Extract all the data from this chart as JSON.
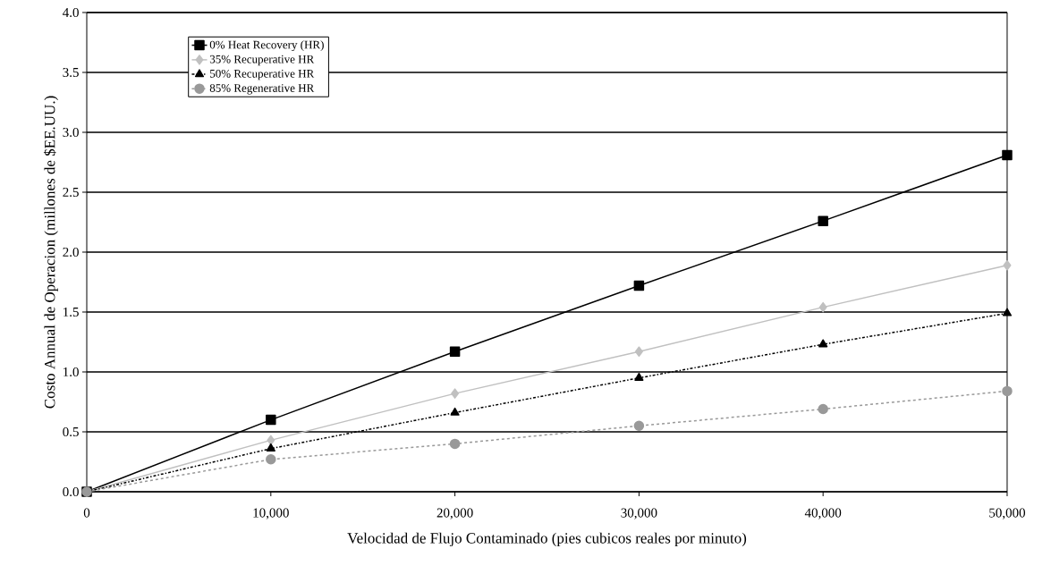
{
  "chart_data": {
    "type": "line",
    "xlabel": "Velocidad de Flujo Contaminado (pies cubicos reales por minuto)",
    "ylabel": "Costo Annual de Operacion (millones de $EE.UU.)",
    "x": [
      0,
      10000,
      20000,
      30000,
      40000,
      50000
    ],
    "series": [
      {
        "name": "0% Heat Recovery (HR)",
        "color": "#000000",
        "marker": "square",
        "line_style": "solid",
        "values": [
          0,
          0.6,
          1.17,
          1.72,
          2.26,
          2.81
        ]
      },
      {
        "name": "35% Recuperative HR",
        "color": "#c0c0c0",
        "marker": "diamond",
        "line_style": "solid",
        "values": [
          0,
          0.43,
          0.82,
          1.17,
          1.54,
          1.89
        ]
      },
      {
        "name": "50% Recuperative HR",
        "color": "#000000",
        "marker": "triangle",
        "line_style": "dotted",
        "values": [
          0,
          0.36,
          0.66,
          0.95,
          1.23,
          1.49
        ]
      },
      {
        "name": "85% Regenerative HR",
        "color": "#999999",
        "marker": "circle",
        "line_style": "dashed",
        "values": [
          0,
          0.27,
          0.4,
          0.55,
          0.69,
          0.84
        ]
      }
    ],
    "xlim": [
      0,
      50000
    ],
    "xticks": [
      0,
      {
        "value": 10000,
        "label": "10,000"
      },
      {
        "value": 20000,
        "label": "20,000"
      },
      {
        "value": 30000,
        "label": "30,000"
      },
      {
        "value": 40000,
        "label": "40,000"
      },
      {
        "value": 50000,
        "label": "50,000"
      }
    ],
    "ylim": [
      0,
      4
    ],
    "yticks": [
      {
        "value": 0,
        "label": "0.0"
      },
      {
        "value": 0.5,
        "label": "0.5"
      },
      {
        "value": 1,
        "label": "1.0"
      },
      {
        "value": 1.5,
        "label": "1.5"
      },
      {
        "value": 2,
        "label": "2.0"
      },
      {
        "value": 2.5,
        "label": "2.5"
      },
      {
        "value": 3,
        "label": "3.0"
      },
      {
        "value": 3.5,
        "label": "3.5"
      },
      {
        "value": 4,
        "label": "4.0"
      }
    ],
    "grid": "y",
    "legend": "top left"
  }
}
